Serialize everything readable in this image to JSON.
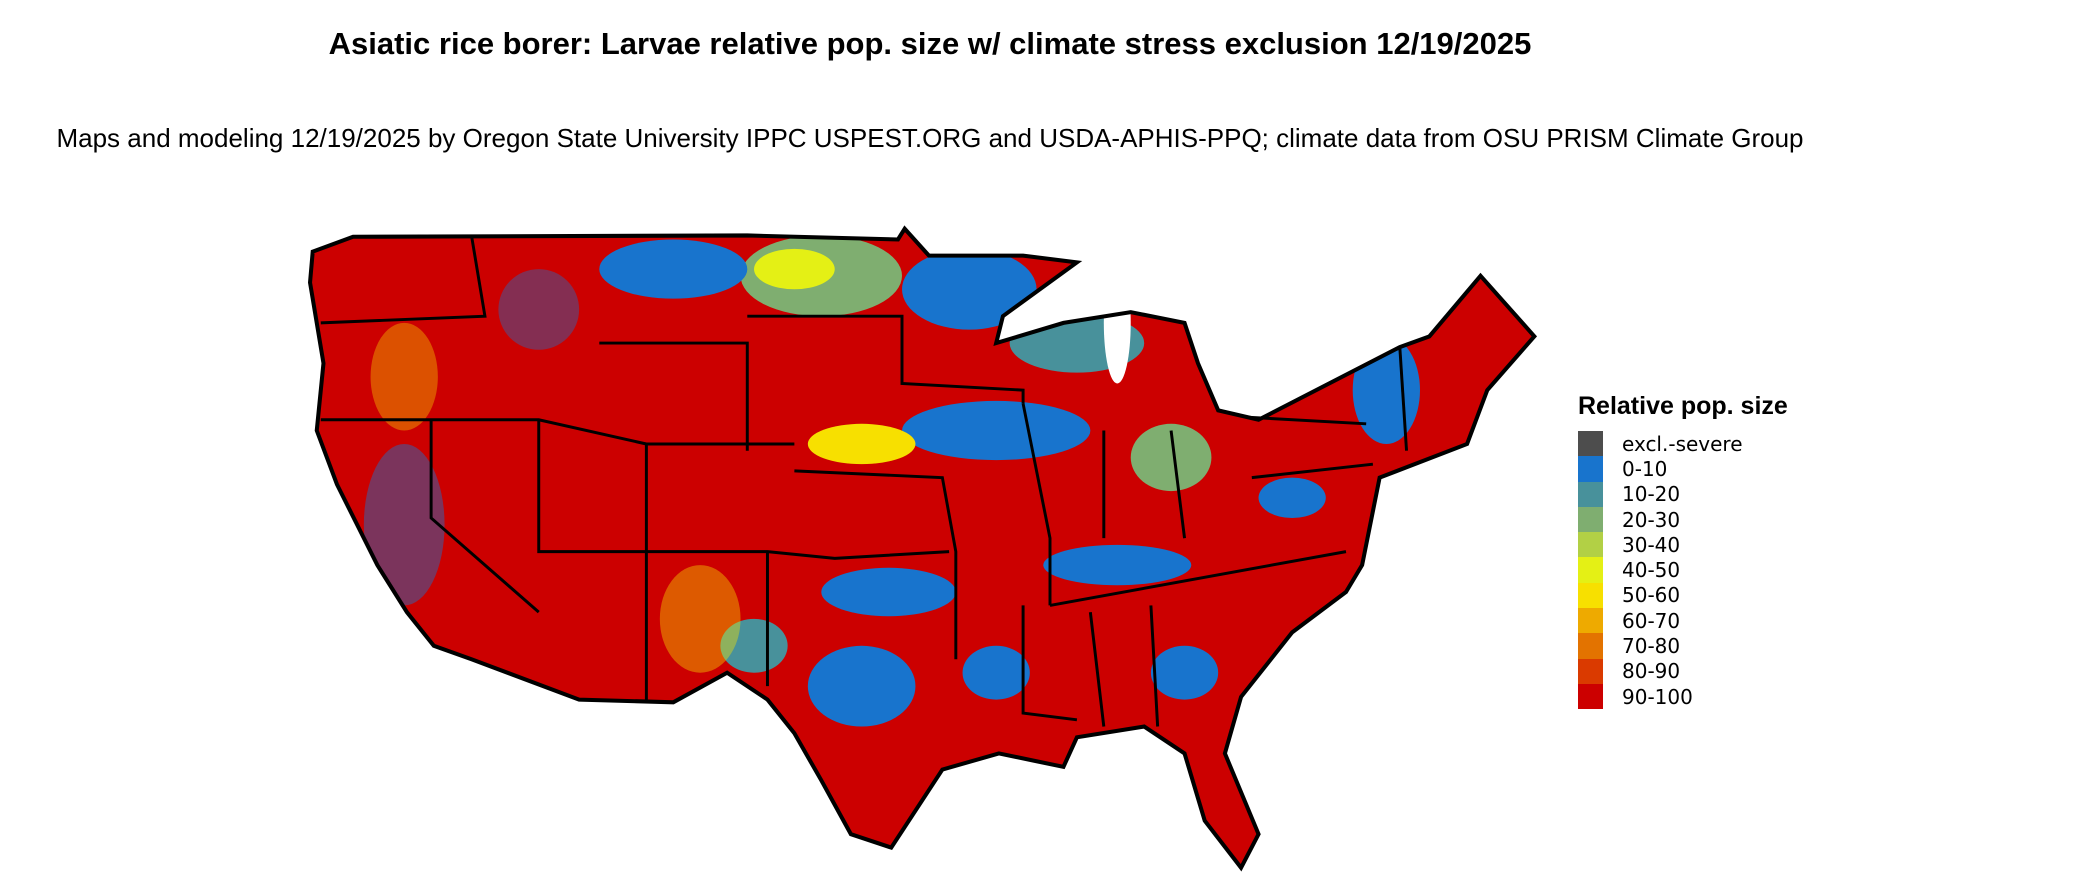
{
  "title": "Asiatic rice borer: Larvae relative pop. size w/ climate stress exclusion 12/19/2025",
  "subtitle": "Maps and modeling 12/19/2025 by Oregon State University IPPC USPEST.ORG and USDA-APHIS-PPQ; climate data from OSU PRISM Climate Group",
  "map": {
    "region": "Contiguous United States",
    "dominant_class": "90-100"
  },
  "legend": {
    "title": "Relative pop. size",
    "items": [
      {
        "label": "excl.-severe",
        "color": "#4d4d4d"
      },
      {
        "label": "0-10",
        "color": "#1874cd"
      },
      {
        "label": "10-20",
        "color": "#48919b"
      },
      {
        "label": "20-30",
        "color": "#7fae70"
      },
      {
        "label": "30-40",
        "color": "#b2d045"
      },
      {
        "label": "40-50",
        "color": "#e4f015"
      },
      {
        "label": "50-60",
        "color": "#f7e000"
      },
      {
        "label": "60-70",
        "color": "#eeaa00"
      },
      {
        "label": "70-80",
        "color": "#e37300"
      },
      {
        "label": "80-90",
        "color": "#da3a00"
      },
      {
        "label": "90-100",
        "color": "#cc0000"
      }
    ]
  }
}
